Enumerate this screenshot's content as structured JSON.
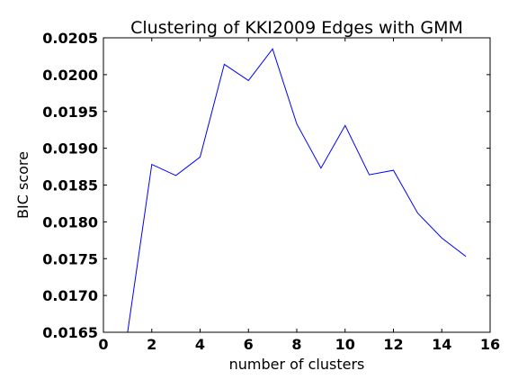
{
  "chart_data": {
    "type": "line",
    "title": "Clustering of KKI2009 Edges with GMM",
    "xlabel": "number of clusters",
    "ylabel": "BIC score",
    "xlim": [
      0,
      16
    ],
    "ylim": [
      0.0165,
      0.0205
    ],
    "xticks": [
      "0",
      "2",
      "4",
      "6",
      "8",
      "10",
      "12",
      "14",
      "16"
    ],
    "yticks": [
      "0.0165",
      "0.0170",
      "0.0175",
      "0.0180",
      "0.0185",
      "0.0190",
      "0.0195",
      "0.0200",
      "0.0205"
    ],
    "grid": false,
    "series": [
      {
        "color": "#0000ff",
        "x": [
          1,
          2,
          3,
          4,
          5,
          6,
          7,
          8,
          9,
          10,
          11,
          12,
          13,
          14,
          15
        ],
        "y": [
          0.0165,
          0.01878,
          0.01863,
          0.01888,
          0.02014,
          0.01992,
          0.02035,
          0.01933,
          0.01873,
          0.01931,
          0.01864,
          0.0187,
          0.01812,
          0.01778,
          0.01753
        ]
      }
    ]
  }
}
